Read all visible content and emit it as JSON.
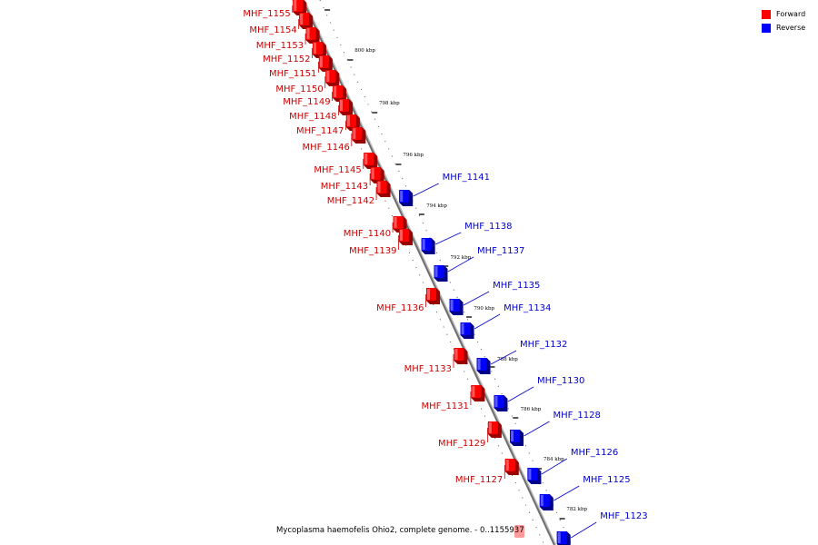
{
  "legend": {
    "forward_label": "Forward",
    "reverse_label": "Reverse",
    "forward_color": "#ff0000",
    "reverse_color": "#0000ff"
  },
  "caption": "Mycoplasma haemofelis Ohio2, complete genome. - 0..1155937",
  "label_colors": {
    "forward": "#cc0000",
    "reverse": "#0000cc"
  },
  "ticks": [
    "800 kbp",
    "798 kbp",
    "796 kbp",
    "794 kbp",
    "792 kbp",
    "790 kbp",
    "788 kbp",
    "786 kbp",
    "784 kbp",
    "782 kbp"
  ],
  "forward_genes": [
    "MHF_1155",
    "MHF_1154",
    "MHF_1153",
    "MHF_1152",
    "MHF_1151",
    "MHF_1150",
    "MHF_1149",
    "MHF_1148",
    "MHF_1147",
    "MHF_1146",
    "MHF_1145",
    "MHF_1143",
    "MHF_1142",
    "MHF_1140",
    "MHF_1139",
    "MHF_1136",
    "MHF_1133",
    "MHF_1131",
    "MHF_1129",
    "MHF_1127"
  ],
  "reverse_genes": [
    "MHF_1141",
    "MHF_1138",
    "MHF_1137",
    "MHF_1135",
    "MHF_1134",
    "MHF_1132",
    "MHF_1130",
    "MHF_1128",
    "MHF_1126",
    "MHF_1125",
    "MHF_1123"
  ]
}
